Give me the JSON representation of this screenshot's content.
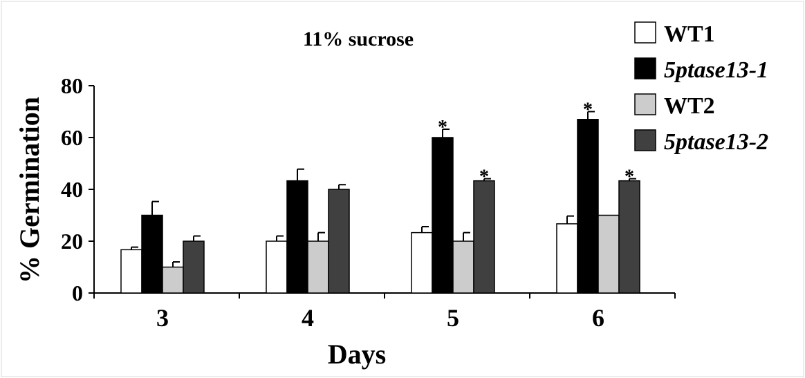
{
  "chart_data": {
    "type": "bar",
    "title": "11% sucrose",
    "xlabel": "Days",
    "ylabel": "% Germination",
    "categories": [
      "3",
      "4",
      "5",
      "6"
    ],
    "ylim": [
      0,
      80
    ],
    "yticks": [
      0,
      20,
      40,
      60,
      80
    ],
    "legend_position": "top-right",
    "series": [
      {
        "name": "WT1",
        "italic": false,
        "color": "#ffffff",
        "values": [
          16.7,
          20,
          23.3,
          26.7
        ],
        "errors": [
          1,
          2,
          2.3,
          3
        ],
        "significant": [
          false,
          false,
          false,
          false
        ]
      },
      {
        "name": "5ptase13-1",
        "italic": true,
        "color": "#000000",
        "values": [
          30,
          43.3,
          60,
          67
        ],
        "errors": [
          5.3,
          4.5,
          3.2,
          3
        ],
        "significant": [
          false,
          false,
          true,
          true
        ]
      },
      {
        "name": "WT2",
        "italic": false,
        "color": "#cccccc",
        "values": [
          10,
          20,
          20,
          30
        ],
        "errors": [
          2,
          3.3,
          3.3,
          0
        ],
        "significant": [
          false,
          false,
          false,
          false
        ]
      },
      {
        "name": "5ptase13-2",
        "italic": true,
        "color": "#404040",
        "values": [
          20,
          40,
          43.3,
          43.3
        ],
        "errors": [
          2,
          1.8,
          0.8,
          0.8
        ],
        "significant": [
          false,
          false,
          true,
          true
        ]
      }
    ],
    "significance_marker": "*"
  }
}
